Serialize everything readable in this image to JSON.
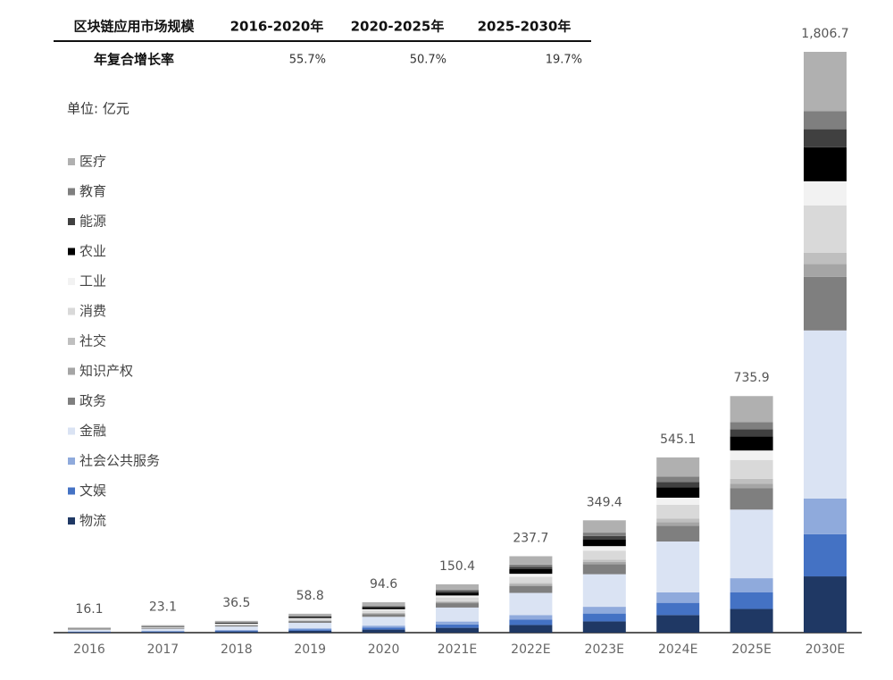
{
  "table": {
    "header": [
      "区块链应用市场规模",
      "2016-2020年",
      "2020-2025年",
      "2025-2030年"
    ],
    "row": [
      "年复合增长率",
      "55.7%",
      "50.7%",
      "19.7%"
    ]
  },
  "unit": "单位: 亿元",
  "chart_data": {
    "type": "stacked_bar",
    "categories": [
      "2016",
      "2017",
      "2018",
      "2019",
      "2020",
      "2021E",
      "2022E",
      "2023E",
      "2024E",
      "2025E",
      "2030E"
    ],
    "totals": [
      16.1,
      23.1,
      36.5,
      58.8,
      94.6,
      150.4,
      237.7,
      349.4,
      545.1,
      735.9,
      1806.7
    ],
    "total_labels": [
      "16.1",
      "23.1",
      "36.5",
      "58.8",
      "94.6",
      "150.4",
      "237.7",
      "349.4",
      "545.1",
      "735.9",
      "1,806.7"
    ],
    "series": [
      {
        "name": "物流",
        "color": "#1f3864",
        "values": [
          1.6,
          2.3,
          3.7,
          5.9,
          9.5,
          15.0,
          23.8,
          34.9,
          54.5,
          73.6,
          175
        ]
      },
      {
        "name": "文娱",
        "color": "#4472c4",
        "values": [
          1.1,
          1.6,
          2.6,
          4.1,
          6.6,
          10.5,
          16.6,
          24.5,
          38.2,
          51.5,
          131
        ]
      },
      {
        "name": "社会公共服务",
        "color": "#8faadc",
        "values": [
          1.0,
          1.4,
          2.2,
          3.5,
          5.7,
          9.0,
          14.3,
          21.0,
          32.7,
          44.2,
          111
        ]
      },
      {
        "name": "金融",
        "color": "#dae3f3",
        "values": [
          4.7,
          6.7,
          10.6,
          17.1,
          27.4,
          43.6,
          68.9,
          101.3,
          158.1,
          213.4,
          523
        ]
      },
      {
        "name": "政务",
        "color": "#7f7f7f",
        "values": [
          1.4,
          2.1,
          3.3,
          5.3,
          8.5,
          13.5,
          21.4,
          31.4,
          49.1,
          66.2,
          167
        ]
      },
      {
        "name": "知识产权",
        "color": "#a5a5a5",
        "values": [
          0.3,
          0.5,
          0.7,
          1.2,
          1.9,
          3.0,
          4.8,
          7.0,
          10.9,
          14.7,
          40
        ]
      },
      {
        "name": "社交",
        "color": "#bfbfbf",
        "values": [
          0.3,
          0.5,
          0.7,
          1.2,
          1.9,
          3.0,
          4.8,
          7.0,
          10.9,
          14.7,
          35
        ]
      },
      {
        "name": "消费",
        "color": "#d9d9d9",
        "values": [
          1.3,
          1.8,
          2.9,
          4.7,
          7.6,
          12.0,
          19.0,
          28.0,
          43.6,
          58.9,
          147
        ]
      },
      {
        "name": "工业",
        "color": "#f2f2f2",
        "values": [
          0.6,
          0.9,
          1.5,
          2.4,
          3.8,
          6.0,
          9.5,
          14.0,
          21.8,
          29.4,
          75
        ]
      },
      {
        "name": "农业",
        "color": "#000000",
        "values": [
          1.0,
          1.4,
          2.2,
          3.5,
          5.7,
          9.0,
          14.3,
          21.0,
          32.7,
          44.2,
          106
        ]
      },
      {
        "name": "能源",
        "color": "#404040",
        "values": [
          0.5,
          0.7,
          1.1,
          1.8,
          2.8,
          4.5,
          7.1,
          10.5,
          16.4,
          22.1,
          56
        ]
      },
      {
        "name": "教育",
        "color": "#7f7f7f",
        "values": [
          0.5,
          0.7,
          1.1,
          1.8,
          2.8,
          4.5,
          7.1,
          10.5,
          16.4,
          22.1,
          56
        ]
      },
      {
        "name": "医疗",
        "color": "#b0b0b0",
        "values": [
          1.8,
          2.5,
          3.9,
          6.3,
          10.4,
          16.8,
          26.1,
          38.3,
          59.8,
          80.9,
          184.7
        ]
      }
    ]
  }
}
